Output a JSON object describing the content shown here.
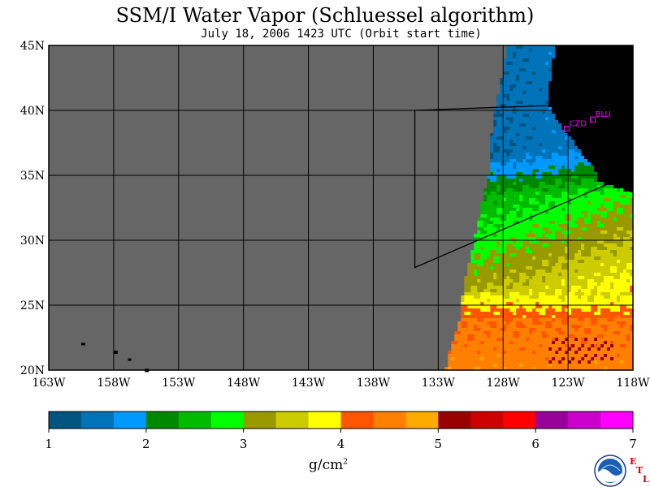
{
  "title": "SSM/I Water Vapor (Schluessel algorithm)",
  "subtitle": "July 18, 2006  1423 UTC  (Orbit start time)",
  "map": {
    "lat_labels": [
      "45N",
      "40N",
      "35N",
      "30N",
      "25N",
      "20N"
    ],
    "lon_labels": [
      "163W",
      "158W",
      "153W",
      "148W",
      "143W",
      "138W",
      "133W",
      "128W",
      "123W",
      "118W"
    ],
    "lat_range": [
      20,
      45
    ],
    "lon_range": [
      -163,
      -118
    ],
    "stations": [
      {
        "id": "CZD",
        "lon": -123.1,
        "lat": 38.6
      },
      {
        "id": "BLU",
        "lon": -121.1,
        "lat": 39.3
      }
    ],
    "colors": {
      "no_data": "#666666",
      "land": "#000000",
      "station": "#ff00ff"
    }
  },
  "colorbar": {
    "ticks": [
      "1",
      "2",
      "3",
      "4",
      "5",
      "6",
      "7"
    ],
    "min": 1,
    "max": 7,
    "colors": [
      "#005580",
      "#0073b9",
      "#0099ff",
      "#008800",
      "#00bb00",
      "#00ff00",
      "#999900",
      "#cccc00",
      "#ffff00",
      "#ff5500",
      "#ff8000",
      "#ffaa00",
      "#990000",
      "#cc0000",
      "#ff0000",
      "#990099",
      "#cc00cc",
      "#ff00ff"
    ],
    "unit": "g/cm",
    "unit_sup": "2"
  },
  "logo": {
    "name": "NOAA",
    "etl_letters": [
      "E",
      "T",
      "L"
    ]
  }
}
